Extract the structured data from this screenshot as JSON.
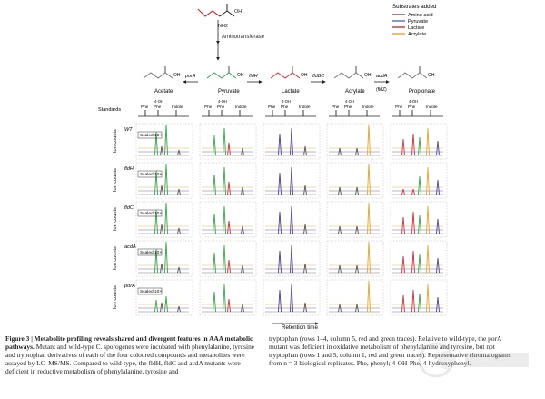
{
  "pathway": {
    "aminotransferase": "Aminotransferase",
    "compounds": [
      "Acetate",
      "Pyruvate",
      "Lactate",
      "Acrylate",
      "Propionate"
    ],
    "enzymes": [
      "porA",
      "fldH",
      "fldBC",
      "acdA"
    ],
    "acdA_sub": "(fldZ)",
    "oh_label": "OH",
    "nh2_label": "NH2"
  },
  "legend": {
    "title": "Substrates added",
    "items": [
      {
        "label": "Amino acid",
        "color": "#7a4b73"
      },
      {
        "label": "Pyruvate",
        "color": "#5a6db0"
      },
      {
        "label": "Lactate",
        "color": "#c8323c"
      },
      {
        "label": "Acrylate",
        "color": "#e0a531"
      }
    ]
  },
  "standards": {
    "label": "Standards",
    "top_tag": "4-OH",
    "peaks": [
      "Phe",
      "Phe",
      "Indole"
    ]
  },
  "rows": [
    {
      "label": "WT",
      "scaled": "Scaled 10×"
    },
    {
      "label": "fldH",
      "scaled": "Scaled 10×"
    },
    {
      "label": "fldC",
      "scaled": "Scaled 10×"
    },
    {
      "label": "acdA",
      "scaled": "Scaled 10×"
    },
    {
      "label": "porA",
      "scaled": "Scaled 10×"
    }
  ],
  "axis": {
    "ylabel": "Ion counts",
    "xlabel": "Retention time"
  },
  "trace_colors": {
    "green": "#3aa04a",
    "purple": "#4b3f8f",
    "red": "#c8323c",
    "orange": "#e0a531",
    "grey": "#555555"
  },
  "caption": {
    "left_head": "Figure 3 | Metabolite profiling reveals shared and divergent features in AAA metabolic pathways.",
    "left_body": "Mutant and wild-type C. sporogenes were incubated with phenylalanine, tyrosine and tryptophan derivatives of each of the four coloured compounds and metabolites were assayed by LC–MS/MS. Compared to wild-type, the fldH, fldC and acdA mutants were deficient in reductive metabolism of phenylalanine, tyrosine and",
    "right_body": "tryptophan (rows 1–4, column 5, red and green traces). Relative to wild-type, the porA mutant was deficient in oxidative metabolism of phenylalanine and tyrosine, but not tryptophan (rows 1 and 5, column 1, red and green traces). Representative chromatograms from n = 3 biological replicates. Phe, phenyl; 4-OH-Phe, 4-hydroxyphenyl."
  }
}
